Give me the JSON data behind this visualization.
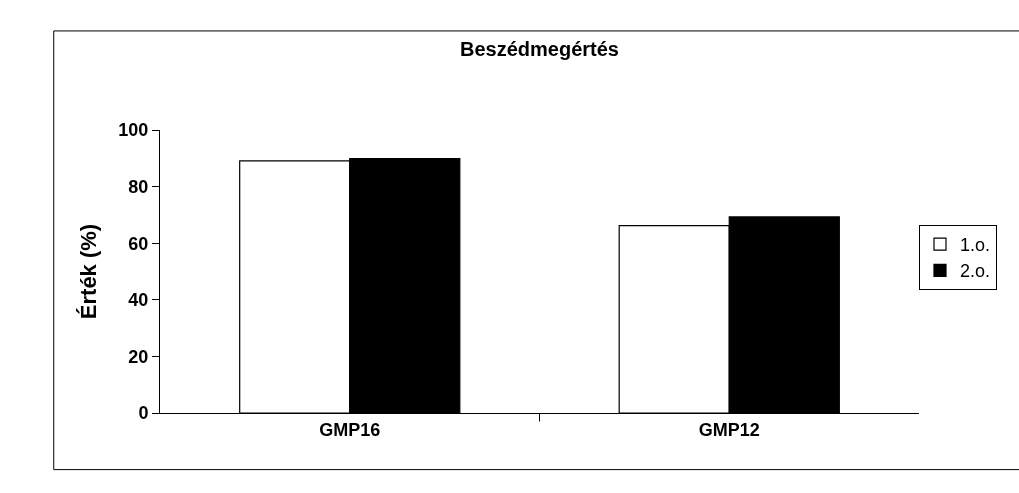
{
  "chart_data": {
    "type": "bar",
    "title": "Beszédmegértés",
    "ylabel": "Érték (%)",
    "categories": [
      "GMP16",
      "GMP12"
    ],
    "series": [
      {
        "name": "1.o.",
        "color": "#ffffff",
        "values": [
          89.1,
          66.2
        ]
      },
      {
        "name": "2.o.",
        "color": "#000000",
        "values": [
          89.9,
          69.3
        ]
      }
    ],
    "ylim": [
      0,
      100
    ],
    "yticks": [
      0,
      20,
      40,
      60,
      80,
      100
    ],
    "grid": false,
    "legend": "right"
  }
}
